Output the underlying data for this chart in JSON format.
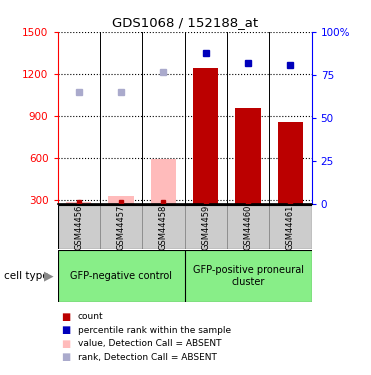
{
  "title": "GDS1068 / 152188_at",
  "samples": [
    "GSM44456",
    "GSM44457",
    "GSM44458",
    "GSM44459",
    "GSM44460",
    "GSM44461"
  ],
  "count_values": [
    290,
    290,
    290,
    1240,
    960,
    860
  ],
  "count_absent_values": [
    290,
    330,
    590,
    290,
    290,
    290
  ],
  "pct_rank_present": [
    null,
    null,
    null,
    88,
    82,
    81
  ],
  "pct_rank_absent": [
    65,
    65,
    77,
    null,
    null,
    null
  ],
  "absent_flags": [
    true,
    true,
    true,
    false,
    false,
    false
  ],
  "ylim_left": [
    270,
    1500
  ],
  "ylim_right": [
    0,
    100
  ],
  "yticks_left": [
    300,
    600,
    900,
    1200,
    1500
  ],
  "yticks_right": [
    0,
    25,
    50,
    75,
    100
  ],
  "group1_label": "GFP-negative control",
  "group2_label": "GFP-positive proneural\ncluster",
  "group1_indices": [
    0,
    1,
    2
  ],
  "group2_indices": [
    3,
    4,
    5
  ],
  "bar_color_present": "#bb0000",
  "bar_color_absent": "#ffbbbb",
  "dot_color_present": "#0000bb",
  "dot_color_absent": "#aaaacc",
  "group_bg_color": "#88ee88",
  "sample_box_color": "#cccccc",
  "legend_items": [
    {
      "color": "#bb0000",
      "label": "count"
    },
    {
      "color": "#0000bb",
      "label": "percentile rank within the sample"
    },
    {
      "color": "#ffbbbb",
      "label": "value, Detection Call = ABSENT"
    },
    {
      "color": "#aaaacc",
      "label": "rank, Detection Call = ABSENT"
    }
  ]
}
